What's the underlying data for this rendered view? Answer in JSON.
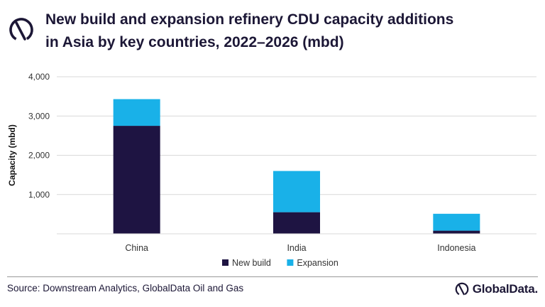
{
  "header": {
    "title_line1": "New build and expansion refinery CDU capacity additions",
    "title_line2": "in Asia by key countries, 2022–2026 (mbd)"
  },
  "chart_data": {
    "type": "bar",
    "stacked": true,
    "categories": [
      "China",
      "India",
      "Indonesia"
    ],
    "series": [
      {
        "name": "New build",
        "color": "#1e1442",
        "values": [
          2750,
          550,
          80
        ]
      },
      {
        "name": "Expansion",
        "color": "#19b1e8",
        "values": [
          680,
          1050,
          430
        ]
      }
    ],
    "ylabel": "Capacity (mbd)",
    "ylim": [
      0,
      4000
    ],
    "yticks": [
      1000,
      2000,
      3000,
      4000
    ],
    "ytick_labels": [
      "1,000",
      "2,000",
      "3,000",
      "4,000"
    ],
    "grid": true,
    "legend_position": "bottom"
  },
  "footer": {
    "source": "Source: Downstream Analytics, GlobalData Oil and Gas",
    "brand": "GlobalData."
  },
  "icons": {
    "header_logo": "globaldata-logo-icon",
    "brand_logo": "globaldata-logo-icon"
  }
}
